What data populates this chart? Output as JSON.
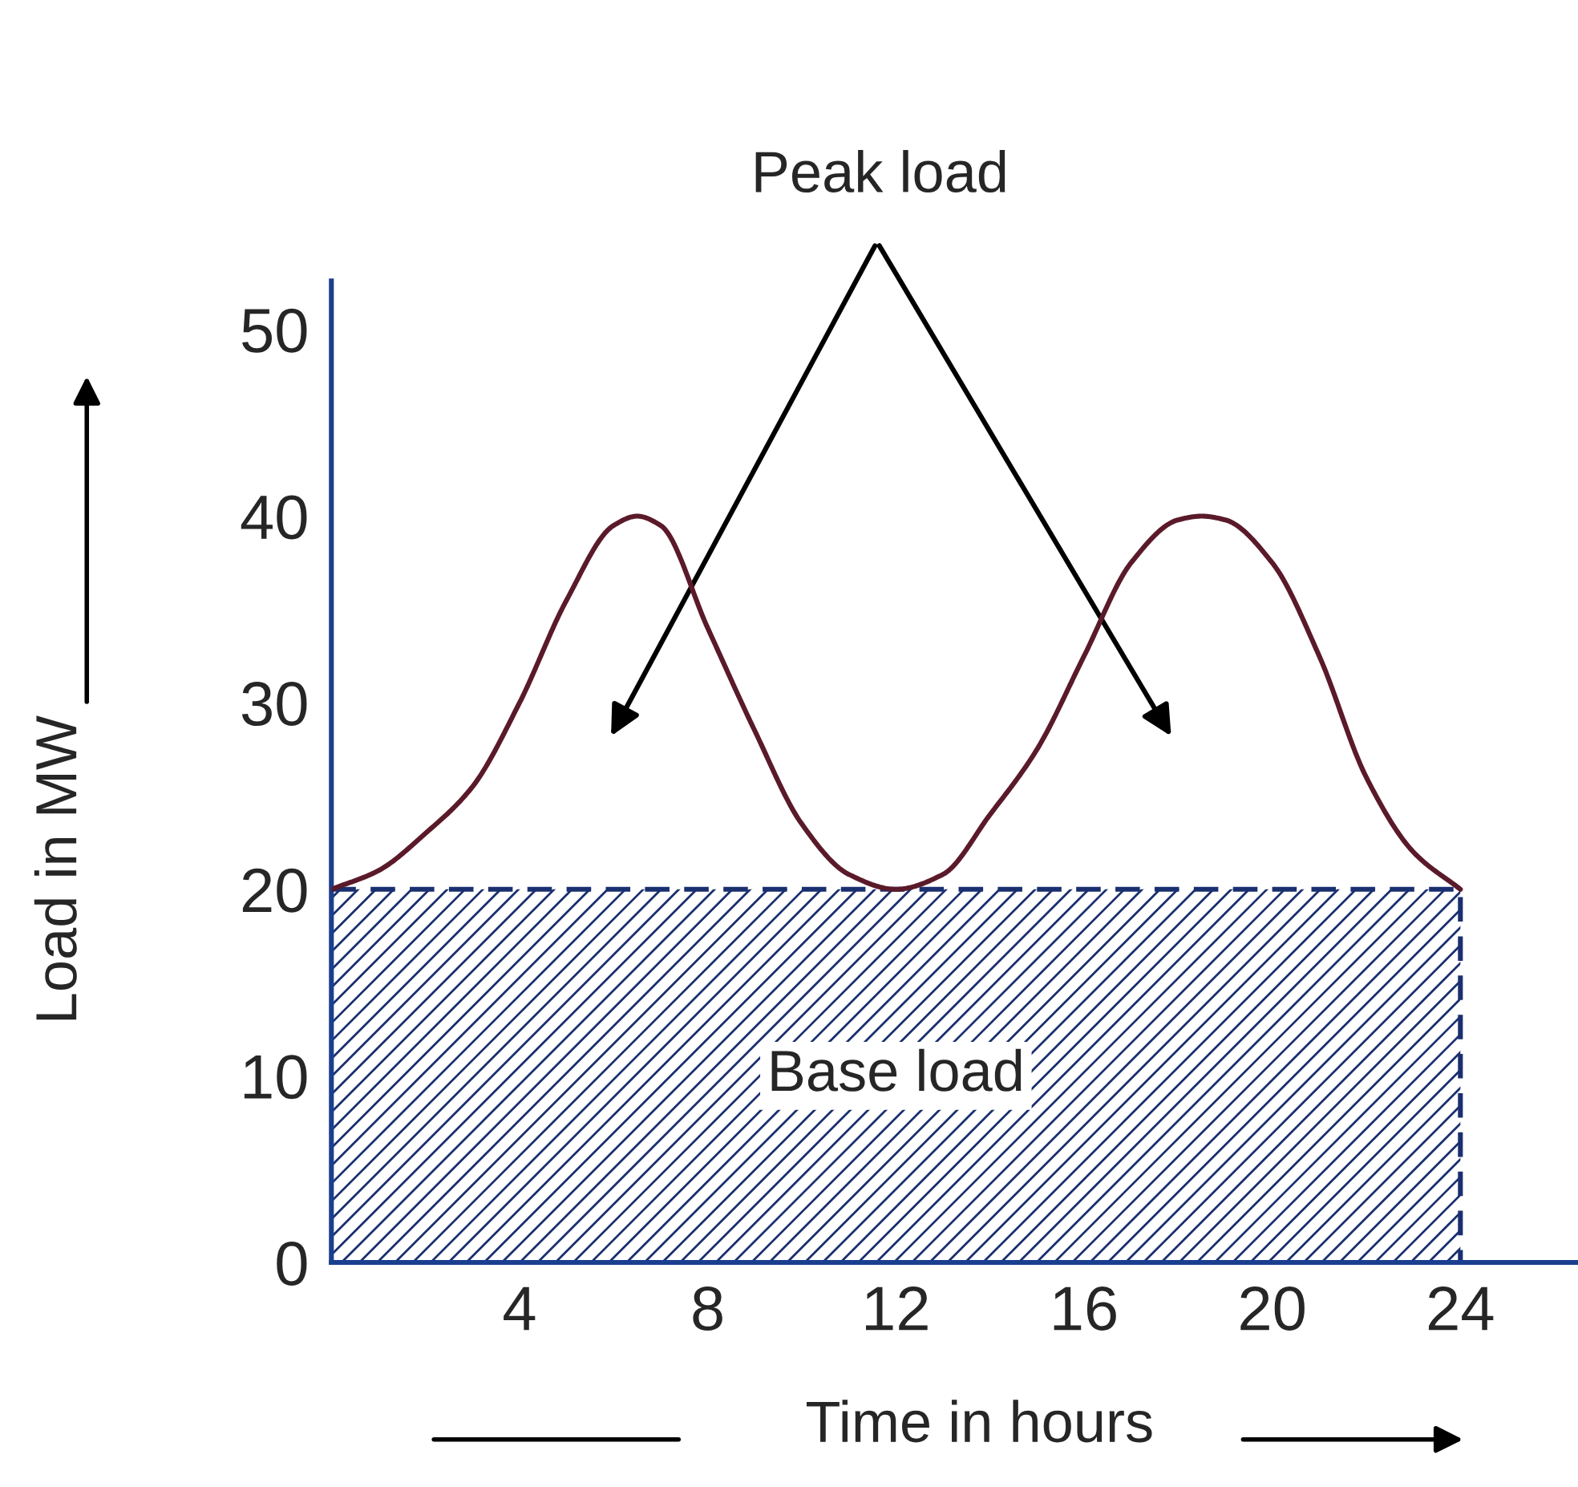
{
  "chart_data": {
    "type": "line",
    "xlabel": "Time in hours",
    "ylabel": "Load in MW",
    "xlim": [
      0,
      26.5
    ],
    "ylim": [
      0,
      52.6
    ],
    "xticks": [
      4,
      8,
      12,
      16,
      20,
      24
    ],
    "yticks": [
      0,
      10,
      20,
      30,
      40,
      50
    ],
    "grid": false,
    "legend": false,
    "marker": "none",
    "annotations": [
      "Peak load"
    ],
    "series": [
      {
        "color": "#5a1a2a",
        "line_style": "solid",
        "x": [
          0,
          1,
          2,
          3,
          4,
          5,
          6,
          6.5,
          7,
          8,
          9,
          10,
          11,
          12,
          13,
          14,
          15,
          16,
          17,
          18,
          18.5,
          19,
          20,
          21,
          22,
          23,
          24
        ],
        "values": [
          20,
          21,
          23,
          25.5,
          30,
          35.5,
          39.5,
          40,
          39.5,
          34,
          28.5,
          23.5,
          20.8,
          20,
          20.8,
          24,
          27.5,
          32.5,
          37.5,
          39.8,
          40,
          39.8,
          37.5,
          32.5,
          26,
          22,
          20
        ]
      },
      {
        "type": "area",
        "name": "Base load",
        "color": "#1a2f6f",
        "line_style": "dashed",
        "x": [
          0,
          24
        ],
        "values": [
          20,
          20
        ]
      }
    ]
  }
}
